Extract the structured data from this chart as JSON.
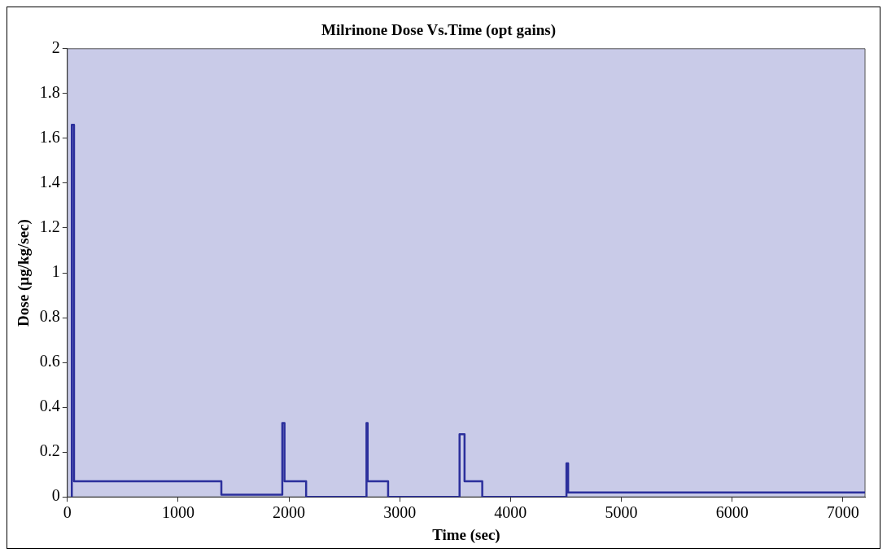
{
  "chart_data": {
    "type": "line",
    "title": "Milrinone Dose Vs.Time (opt gains)",
    "xlabel": "Time (sec)",
    "ylabel": "Dose (µg/kg/sec)",
    "xlim": [
      0,
      7200
    ],
    "xticks": [
      0,
      1000,
      2000,
      3000,
      4000,
      5000,
      6000,
      7000
    ],
    "ylim": [
      0,
      2
    ],
    "yticks": [
      0,
      0.2,
      0.4,
      0.6,
      0.8,
      1,
      1.2,
      1.4,
      1.6,
      1.8,
      2
    ],
    "grid": false,
    "legend": false,
    "marker": "none",
    "line_style": "solid",
    "series": [
      {
        "color": "#2b2f9c",
        "x": [
          40,
          40,
          60,
          60,
          1390,
          1390,
          1940,
          1940,
          1960,
          1960,
          2155,
          2155,
          2700,
          2700,
          2710,
          2710,
          2895,
          2895,
          3540,
          3540,
          3585,
          3585,
          3745,
          3745,
          4505,
          4505,
          4520,
          4520,
          7200
        ],
        "values": [
          0,
          1.66,
          1.66,
          0.07,
          0.07,
          0.01,
          0.01,
          0.33,
          0.33,
          0.07,
          0.07,
          0,
          0,
          0.33,
          0.33,
          0.07,
          0.07,
          0,
          0,
          0.28,
          0.28,
          0.07,
          0.07,
          0,
          0,
          0.15,
          0.15,
          0.02,
          0.02
        ]
      }
    ]
  }
}
